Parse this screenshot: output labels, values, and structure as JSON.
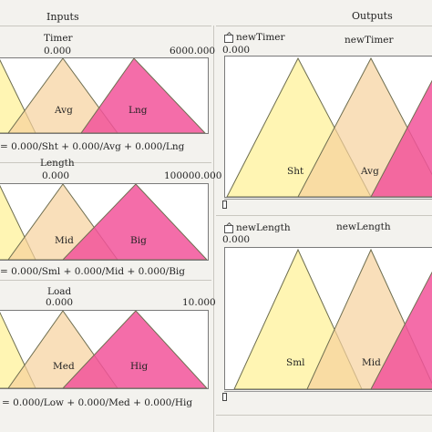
{
  "headers": {
    "inputs": "Inputs",
    "outputs": "Outputs"
  },
  "colors": {
    "pale": "#fff3a6",
    "peach": "#f7d19d",
    "pink": "#f2539a",
    "outline": "#6e6e50"
  },
  "inputs": [
    {
      "title": "Timer",
      "value": "0.000",
      "max": "6000.000",
      "sets": [
        "",
        "Avg",
        "Lng"
      ],
      "formula": "= 0.000/Sht + 0.000/Avg + 0.000/Lng"
    },
    {
      "title": "Length",
      "value": "0.000",
      "max": "100000.000",
      "sets": [
        "",
        "Mid",
        "Big"
      ],
      "formula": "= 0.000/Sml + 0.000/Mid + 0.000/Big"
    },
    {
      "title": "Load",
      "value": "0.000",
      "max": "10.000",
      "sets": [
        "",
        "Med",
        "Hig"
      ],
      "formula": "= 0.000/Low + 0.000/Med + 0.000/Hig"
    }
  ],
  "outputs": [
    {
      "name": "newTimer",
      "title": "newTimer",
      "value": "0.000",
      "sets": [
        "Sht",
        "Avg",
        ""
      ],
      "icon": "export-icon"
    },
    {
      "name": "newLength",
      "title": "newLength",
      "value": "0.000",
      "sets": [
        "Sml",
        "Mid",
        ""
      ],
      "icon": "export-icon"
    }
  ]
}
